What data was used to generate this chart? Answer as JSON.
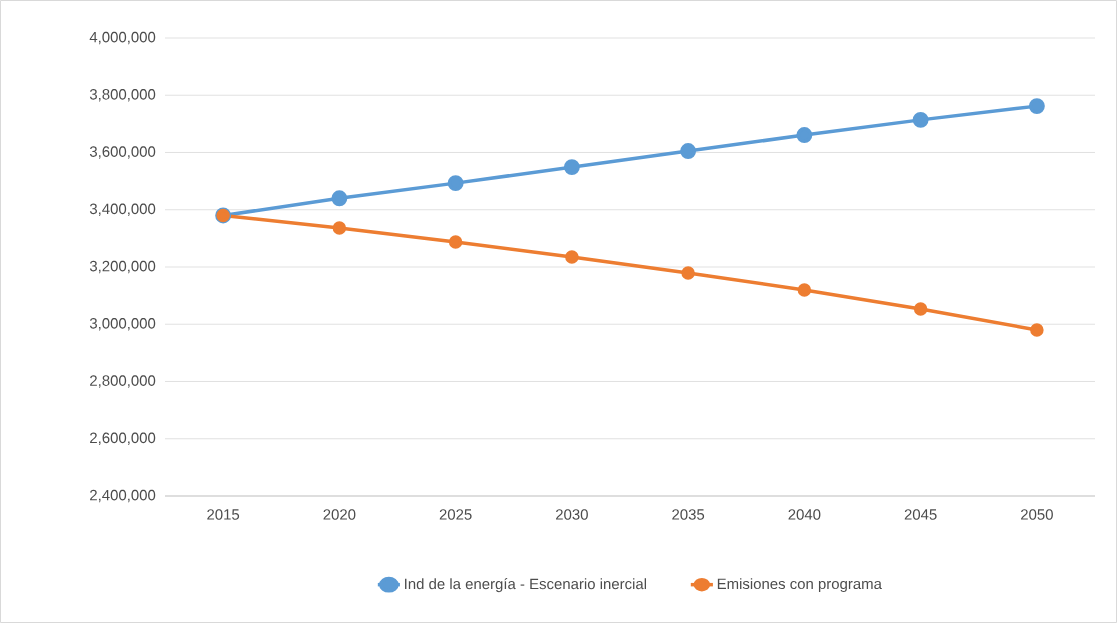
{
  "chart_data": {
    "type": "line",
    "categories": [
      "2015",
      "2020",
      "2025",
      "2030",
      "2035",
      "2040",
      "2045",
      "2050"
    ],
    "series": [
      {
        "name": "Ind de la energía - Escenario inercial",
        "color": "#5b9bd5",
        "values": [
          3380000,
          3440000,
          3493000,
          3549000,
          3605000,
          3661000,
          3714000,
          3762000
        ]
      },
      {
        "name": "Emisiones con programa",
        "color": "#ed7d31",
        "values": [
          3380000,
          3336000,
          3287000,
          3235000,
          3179000,
          3120000,
          3053000,
          2980000
        ]
      }
    ],
    "ylim": [
      2400000,
      4000000
    ],
    "yticks": [
      {
        "value": 2400000,
        "label": "2,400,000"
      },
      {
        "value": 2600000,
        "label": "2,600,000"
      },
      {
        "value": 2800000,
        "label": "2,800,000"
      },
      {
        "value": 3000000,
        "label": "3,000,000"
      },
      {
        "value": 3200000,
        "label": "3,200,000"
      },
      {
        "value": 3400000,
        "label": "3,400,000"
      },
      {
        "value": 3600000,
        "label": "3,600,000"
      },
      {
        "value": 3800000,
        "label": "3,800,000"
      },
      {
        "value": 4000000,
        "label": "4,000,000"
      }
    ],
    "grid": "y",
    "legend": "bottom",
    "marker": "circle",
    "line_style": "solid"
  }
}
